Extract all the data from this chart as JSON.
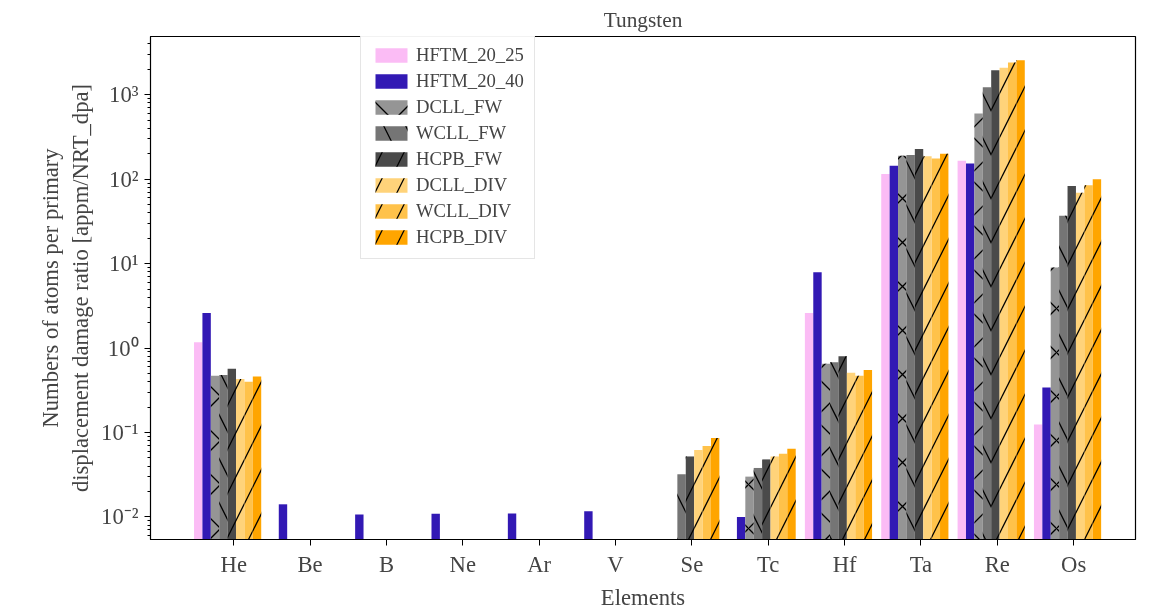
{
  "chart_data": {
    "type": "bar",
    "title": "Tungsten",
    "xlabel": "Elements",
    "ylabel": "Numbers of atoms per primary\ndisplacement damage ratio [appm/NRT_dpa]",
    "categories": [
      "He",
      "Be",
      "B",
      "Ne",
      "Ar",
      "V",
      "Se",
      "Tc",
      "Hf",
      "Ta",
      "Re",
      "Os"
    ],
    "log": true,
    "ylim": [
      0.0054,
      4900
    ],
    "yticks": [
      {
        "value": 0.01,
        "label": "10⁻²"
      },
      {
        "value": 0.1,
        "label": "10⁻¹"
      },
      {
        "value": 1,
        "label": "10⁰"
      },
      {
        "value": 10,
        "label": "10¹"
      },
      {
        "value": 100,
        "label": "10²"
      },
      {
        "value": 1000,
        "label": "10³"
      }
    ],
    "grid": false,
    "legend": "top left",
    "series": [
      {
        "name": "HFTM_20_25",
        "color": "#fbbcf5",
        "values": [
          1.17,
          null,
          null,
          null,
          null,
          null,
          null,
          null,
          2.6,
          115,
          165,
          0.124
        ]
      },
      {
        "name": "HFTM_20_40",
        "color": "#3219b4",
        "values": [
          2.6,
          0.0141,
          0.0107,
          0.0109,
          0.011,
          0.0117,
          null,
          0.01,
          7.9,
          144,
          153,
          0.34
        ]
      },
      {
        "name": "DCLL_FW",
        "color": "#959595",
        "values": [
          0.47,
          null,
          null,
          null,
          null,
          null,
          null,
          0.03,
          0.65,
          189,
          600,
          9.0
        ]
      },
      {
        "name": "WCLL_FW",
        "color": "#757575",
        "values": [
          0.48,
          null,
          null,
          null,
          null,
          null,
          0.032,
          0.038,
          0.68,
          193,
          1230,
          37
        ]
      },
      {
        "name": "HCPB_FW",
        "color": "#4a4a4a",
        "values": [
          0.57,
          null,
          null,
          null,
          null,
          null,
          0.052,
          0.048,
          0.8,
          228,
          1950,
          83
        ]
      },
      {
        "name": "DCLL_DIV",
        "color": "#ffd37a",
        "values": [
          0.43,
          null,
          null,
          null,
          null,
          null,
          0.062,
          0.052,
          0.51,
          187,
          2090,
          69
        ]
      },
      {
        "name": "WCLL_DIV",
        "color": "#ffc24a",
        "values": [
          0.4,
          null,
          null,
          null,
          null,
          null,
          0.069,
          0.056,
          0.47,
          176,
          2410,
          85
        ]
      },
      {
        "name": "HCPB_DIV",
        "color": "#ffa500",
        "values": [
          0.46,
          null,
          null,
          null,
          null,
          null,
          0.086,
          0.064,
          0.55,
          200,
          2560,
          100
        ]
      }
    ]
  }
}
